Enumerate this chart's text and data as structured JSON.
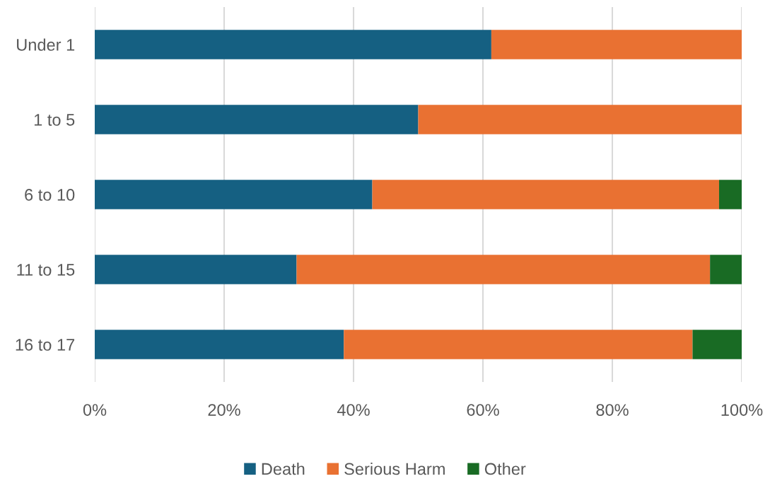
{
  "chart_data": {
    "type": "bar",
    "orientation": "horizontal",
    "stacked": true,
    "categories": [
      "Under 1",
      "1 to 5",
      "6 to 10",
      "11 to 15",
      "16 to 17"
    ],
    "series": [
      {
        "name": "Death",
        "color": "#156082",
        "values": [
          61.3,
          50.0,
          42.9,
          31.2,
          38.5
        ]
      },
      {
        "name": "Serious Harm",
        "color": "#e97132",
        "values": [
          38.7,
          50.0,
          53.6,
          63.9,
          53.9
        ]
      },
      {
        "name": "Other",
        "color": "#196b24",
        "values": [
          0,
          0,
          3.5,
          4.9,
          7.6
        ]
      }
    ],
    "xlim": [
      0,
      100
    ],
    "xticks": [
      {
        "value": 0,
        "label": "0%"
      },
      {
        "value": 20,
        "label": "20%"
      },
      {
        "value": 40,
        "label": "40%"
      },
      {
        "value": 60,
        "label": "60%"
      },
      {
        "value": 80,
        "label": "80%"
      },
      {
        "value": 100,
        "label": "100%"
      }
    ],
    "grid": "x",
    "legend": "bottom"
  }
}
